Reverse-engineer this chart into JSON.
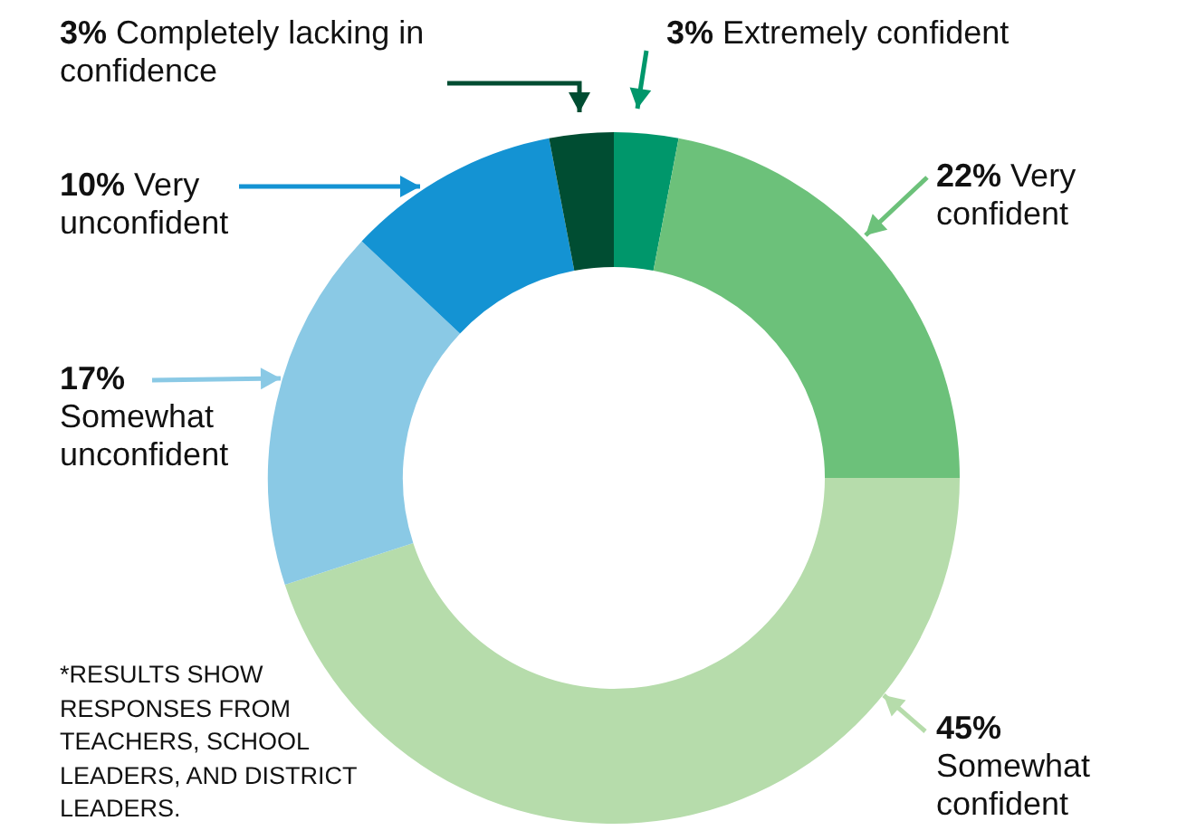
{
  "chart_data": {
    "type": "donut",
    "categories": [
      "Extremely confident",
      "Very confident",
      "Somewhat confident",
      "Somewhat unconfident",
      "Very unconfident",
      "Completely lacking in confidence"
    ],
    "values": [
      3,
      22,
      45,
      17,
      10,
      3
    ],
    "value_labels": [
      "3%",
      "22%",
      "45%",
      "17%",
      "10%",
      "3%"
    ],
    "colors": [
      "#00976b",
      "#6cc17a",
      "#b6dcab",
      "#8ac9e5",
      "#1493d3",
      "#004d32"
    ],
    "annotations": [
      "*RESULTS SHOW RESPONSES FROM TEACHERS, SCHOOL LEADERS, AND DISTRICT LEADERS."
    ],
    "legend": false
  }
}
